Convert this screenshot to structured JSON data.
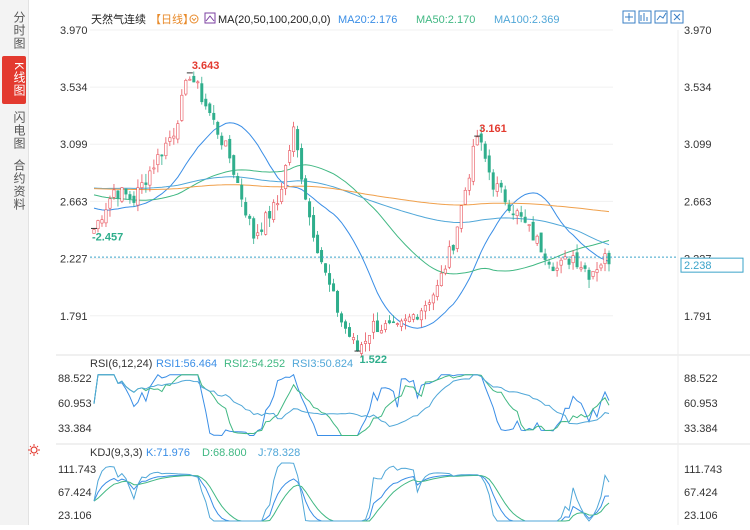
{
  "sidebar": {
    "tabs": [
      {
        "label": "分时图",
        "active": false
      },
      {
        "label": "K线图",
        "active": true
      },
      {
        "label": "闪电图",
        "active": false
      },
      {
        "label": "合约资料",
        "active": false
      }
    ]
  },
  "header": {
    "instrument": "天然气连续",
    "period": "【日线】",
    "ma_label": "MA(20,50,100,200,0,0)",
    "ma_values": [
      {
        "text": "MA20:2.176",
        "color": "#3a8ee6"
      },
      {
        "text": "MA50:2.170",
        "color": "#41b883"
      },
      {
        "text": "MA100:2.369",
        "color": "#50a7d8"
      }
    ],
    "toolbar_icons": [
      "fullscreen-icon",
      "add-indicator-icon",
      "chart-settings-icon",
      "close-icon"
    ]
  },
  "colors": {
    "up": "#e8525b",
    "down": "#2fae8c",
    "ma20": "#3a8ee6",
    "ma50": "#41b883",
    "ma100": "#50a7d8",
    "ma200": "#f0a04b",
    "last_price_line": "#3aa3c9"
  },
  "chart_data": [
    {
      "type": "candlestick",
      "title": "天然气连续",
      "axis_ticks": [
        "3.970",
        "3.534",
        "3.099",
        "2.663",
        "2.227",
        "1.791"
      ],
      "ylim": [
        1.53,
        3.97
      ],
      "last_price": "2.238",
      "last_price_value": 2.238,
      "annotations": [
        {
          "text": "3.643",
          "type": "high",
          "color": "#e33a2f"
        },
        {
          "text": "2.457",
          "type": "low",
          "color": "#2fae8c"
        },
        {
          "text": "3.161",
          "type": "high",
          "color": "#e33a2f"
        },
        {
          "text": "1.522",
          "type": "low",
          "color": "#2fae8c"
        }
      ],
      "anchors": [
        2.45,
        2.75,
        2.68,
        2.95,
        3.2,
        3.64,
        3.4,
        3.0,
        2.4,
        2.65,
        3.2,
        2.55,
        2.1,
        1.75,
        1.53,
        1.72,
        1.68,
        1.85,
        2.0,
        2.35,
        3.16,
        2.8,
        2.65,
        2.4,
        2.15,
        2.25,
        2.12,
        2.23
      ],
      "anchor_days": [
        0,
        5,
        10,
        15,
        20,
        24,
        28,
        34,
        40,
        46,
        50,
        54,
        58,
        62,
        66,
        70,
        76,
        82,
        86,
        90,
        96,
        100,
        104,
        110,
        116,
        120,
        124,
        128
      ],
      "day_count": 130,
      "ma_series": [
        {
          "name": "MA20",
          "period": 20
        },
        {
          "name": "MA50",
          "period": 50
        },
        {
          "name": "MA100",
          "period": 100
        },
        {
          "name": "MA200",
          "period": 200
        }
      ]
    },
    {
      "type": "line",
      "title": "RSI(6,12,24)",
      "legend": [
        {
          "text": "RSI(6,12,24)",
          "color": "#333333"
        },
        {
          "text": "RSI1:56.464",
          "color": "#3a8ee6"
        },
        {
          "text": "RSI2:54.252",
          "color": "#41b883"
        },
        {
          "text": "RSI3:50.824",
          "color": "#50a7d8"
        }
      ],
      "axis_ticks": [
        "88.522",
        "60.953",
        "33.384"
      ],
      "ylim": [
        20,
        95
      ],
      "series": [
        {
          "name": "RSI1",
          "period": 6
        },
        {
          "name": "RSI2",
          "period": 12
        },
        {
          "name": "RSI3",
          "period": 24
        }
      ]
    },
    {
      "type": "line",
      "title": "KDJ(9,3,3)",
      "legend": [
        {
          "text": "KDJ(9,3,3)",
          "color": "#333333"
        },
        {
          "text": "K:71.976",
          "color": "#3a8ee6"
        },
        {
          "text": "D:68.800",
          "color": "#41b883"
        },
        {
          "text": "J:78.328",
          "color": "#50a7d8"
        }
      ],
      "axis_ticks": [
        "111.743",
        "67.424",
        "23.106"
      ],
      "ylim": [
        10,
        125
      ],
      "series": [
        {
          "name": "K"
        },
        {
          "name": "D"
        },
        {
          "name": "J"
        }
      ]
    }
  ]
}
